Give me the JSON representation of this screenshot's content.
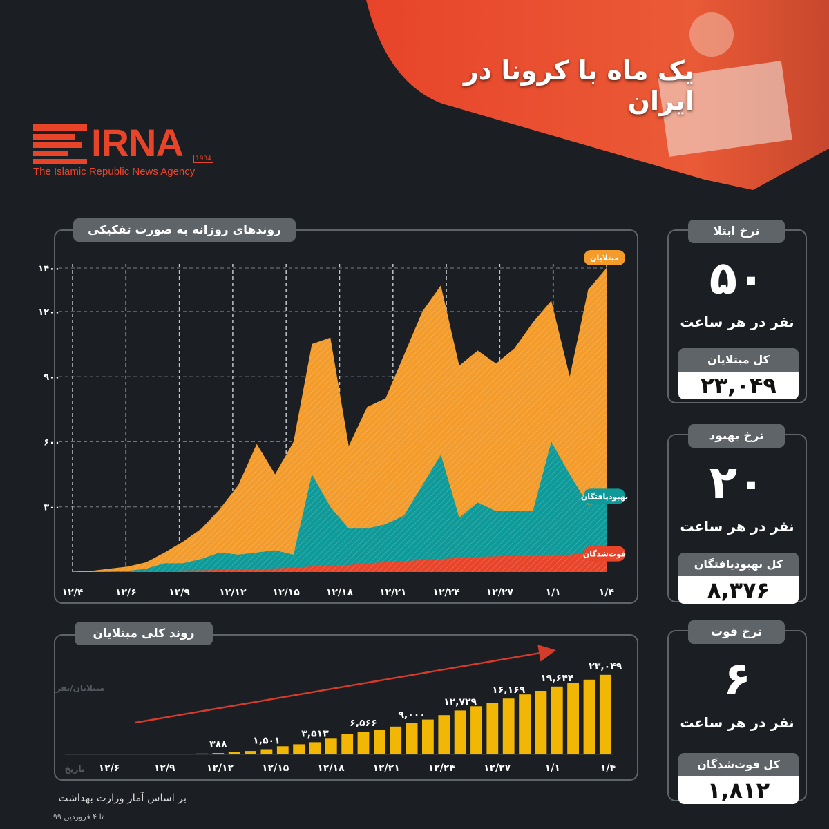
{
  "header": {
    "title": "یک ماه با کرونا در ایران",
    "accent_color": "#e8442a"
  },
  "logo": {
    "name": "IRNA",
    "year": "1934",
    "subtitle": "The Islamic Republic News Agency"
  },
  "daily_panel": {
    "title": "روندهای روزانه به صورت تفکیکی"
  },
  "cumulative_panel": {
    "title": "روند کلی مبتلایان"
  },
  "stats": [
    {
      "tab": "نرخ ابتلا",
      "rate": "۵۰",
      "unit": "نفر در هر ساعت",
      "total_label": "کل مبتلایان",
      "total": "۲۳,۰۴۹"
    },
    {
      "tab": "نرخ بهبود",
      "rate": "۲۰",
      "unit": "نفر در هر ساعت",
      "total_label": "کل بهبودیافتگان",
      "total": "۸,۳۷۶"
    },
    {
      "tab": "نرخ فوت",
      "rate": "۶",
      "unit": "نفر در هر ساعت",
      "total_label": "کل فوت‌شدگان",
      "total": "۱,۸۱۲"
    }
  ],
  "footer": {
    "source": "بر اساس آمار وزارت بهداشت",
    "date": "تا ۴ فروردین ۹۹"
  },
  "chart_data": [
    {
      "type": "area",
      "title": "روندهای روزانه به صورت تفکیکی",
      "xlabel": "",
      "ylabel": "",
      "ylim": [
        0,
        1400
      ],
      "y_ticks": [
        300,
        600,
        900,
        1200,
        1400
      ],
      "y_tick_labels": [
        "۳۰۰",
        "۶۰۰",
        "۹۰۰",
        "۱۲۰۰",
        "۱۴۰۰"
      ],
      "x_tick_labels": [
        "۱۲/۴",
        "۱۲/۶",
        "۱۲/۹",
        "۱۲/۱۲",
        "۱۲/۱۵",
        "۱۲/۱۸",
        "۱۲/۲۱",
        "۱۲/۲۴",
        "۱۲/۲۷",
        "۱/۱",
        "۱/۴"
      ],
      "grid": true,
      "x": [
        "12/4",
        "12/5",
        "12/6",
        "12/7",
        "12/8",
        "12/9",
        "12/10",
        "12/11",
        "12/12",
        "12/13",
        "12/14",
        "12/15",
        "12/16",
        "12/17",
        "12/18",
        "12/19",
        "12/20",
        "12/21",
        "12/22",
        "12/23",
        "12/24",
        "12/25",
        "12/26",
        "12/27",
        "12/28",
        "12/29",
        "1/1",
        "1/2",
        "1/3",
        "1/4"
      ],
      "series": [
        {
          "name": "مبتلایان",
          "color": "#f39c2c",
          "values": [
            2,
            5,
            15,
            25,
            45,
            90,
            140,
            200,
            290,
            400,
            590,
            450,
            600,
            1050,
            1080,
            580,
            760,
            800,
            1000,
            1200,
            1320,
            950,
            1020,
            960,
            1030,
            1150,
            1250,
            900,
            1300,
            1400
          ]
        },
        {
          "name": "بهبودیافتگان",
          "color": "#0d9a98",
          "values": [
            0,
            0,
            2,
            5,
            15,
            40,
            40,
            60,
            90,
            80,
            90,
            100,
            80,
            450,
            300,
            200,
            200,
            220,
            260,
            400,
            540,
            250,
            320,
            280,
            280,
            280,
            600,
            450,
            310,
            320
          ]
        },
        {
          "name": "فوت‌شدگان",
          "color": "#e8442a",
          "values": [
            0,
            0,
            1,
            2,
            3,
            5,
            7,
            8,
            10,
            12,
            15,
            17,
            20,
            25,
            30,
            32,
            40,
            45,
            50,
            55,
            60,
            65,
            70,
            72,
            75,
            78,
            80,
            80,
            90,
            100
          ]
        }
      ]
    },
    {
      "type": "bar",
      "title": "روند کلی مبتلایان",
      "ylabel": "مبتلایان/نفر",
      "xlabel": "تاریخ",
      "x_tick_labels": [
        "۱۲/۶",
        "۱۲/۹",
        "۱۲/۱۲",
        "۱۲/۱۵",
        "۱۲/۱۸",
        "۱۲/۲۱",
        "۱۲/۲۴",
        "۱۲/۲۷",
        "۱/۱",
        "۱/۴"
      ],
      "ylim": [
        0,
        24000
      ],
      "bar_color": "#f2b705",
      "values": [
        2,
        5,
        18,
        28,
        43,
        61,
        95,
        139,
        245,
        388,
        593,
        978,
        1501,
        2336,
        2922,
        3513,
        4747,
        5823,
        6566,
        7161,
        8042,
        9000,
        10075,
        11364,
        12729,
        13938,
        14991,
        16169,
        17361,
        18407,
        19644,
        20610,
        21638,
        23049
      ],
      "data_labels": [
        {
          "index": 9,
          "text": "۳۸۸"
        },
        {
          "index": 12,
          "text": "۱,۵۰۱"
        },
        {
          "index": 15,
          "text": "۳,۵۱۳"
        },
        {
          "index": 18,
          "text": "۶,۵۶۶"
        },
        {
          "index": 21,
          "text": "۹,۰۰۰"
        },
        {
          "index": 24,
          "text": "۱۲,۷۲۹"
        },
        {
          "index": 27,
          "text": "۱۶,۱۶۹"
        },
        {
          "index": 30,
          "text": "۱۹,۶۴۴"
        },
        {
          "index": 33,
          "text": "۲۳,۰۴۹"
        }
      ]
    }
  ]
}
